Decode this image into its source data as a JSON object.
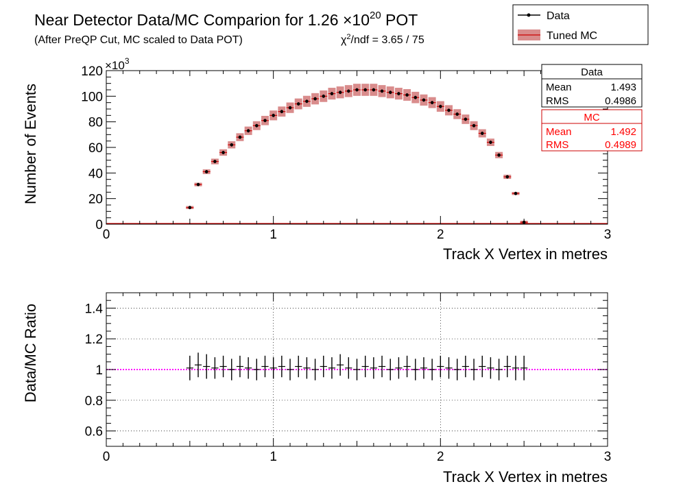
{
  "header": {
    "title_main": "Near Detector Data/MC Comparion for 1.26 ",
    "title_times": "×10",
    "title_exp": "20",
    "title_tail": " POT",
    "subtitle": "(After PreQP Cut, MC scaled to Data POT)",
    "chi2_chi": "χ",
    "chi2_sup": "2",
    "chi2_rest": "/ndf = 3.65 / 75"
  },
  "legend": {
    "data_label": "Data",
    "mc_label": "Tuned MC"
  },
  "stats": {
    "data": {
      "title": "Data",
      "mean_label": "Mean",
      "mean": "1.493",
      "rms_label": "RMS",
      "rms": "0.4986"
    },
    "mc": {
      "title": "MC",
      "mean_label": "Mean",
      "mean": "1.492",
      "rms_label": "RMS",
      "rms": "0.4989"
    }
  },
  "colors": {
    "data": "#000000",
    "mc_band": "#d98c8c",
    "mc_line": "#cc0000",
    "ratio_line": "#ff00ff"
  },
  "chart_data": [
    {
      "type": "line",
      "name": "distribution",
      "xlabel": "Track X Vertex in metres",
      "ylabel": "Number of Events",
      "y_exponent_label": "×10",
      "y_exponent": "3",
      "xlim": [
        0,
        3
      ],
      "ylim": [
        0,
        120
      ],
      "xticks": [
        0,
        1,
        2,
        3
      ],
      "yticks": [
        0,
        20,
        40,
        60,
        80,
        100,
        120
      ],
      "grid": false,
      "legend_position": "top-right",
      "bin_width": 0.05,
      "x": [
        0.5,
        0.55,
        0.6,
        0.65,
        0.7,
        0.75,
        0.8,
        0.85,
        0.9,
        0.95,
        1.0,
        1.05,
        1.1,
        1.15,
        1.2,
        1.25,
        1.3,
        1.35,
        1.4,
        1.45,
        1.5,
        1.55,
        1.6,
        1.65,
        1.7,
        1.75,
        1.8,
        1.85,
        1.9,
        1.95,
        2.0,
        2.05,
        2.1,
        2.15,
        2.2,
        2.25,
        2.3,
        2.35,
        2.4,
        2.45,
        2.5
      ],
      "series": [
        {
          "name": "Data",
          "values": [
            13,
            31,
            41,
            49,
            56,
            62,
            68,
            73,
            77,
            81,
            85,
            88,
            91,
            94,
            96,
            98,
            100,
            102,
            103,
            104,
            105,
            105,
            105,
            104,
            103,
            102,
            101,
            99,
            97,
            95,
            92,
            89,
            86,
            82,
            77,
            71,
            64,
            54,
            37,
            24,
            1.5
          ]
        },
        {
          "name": "Tuned MC",
          "values": [
            13,
            31,
            41,
            49,
            56,
            62,
            68,
            73,
            77,
            81,
            85,
            88,
            91,
            94,
            96,
            98,
            100,
            102,
            103,
            104,
            105,
            105,
            105,
            104,
            103,
            102,
            101,
            99,
            97,
            95,
            92,
            89,
            86,
            82,
            77,
            71,
            64,
            54,
            37,
            24,
            1.5
          ]
        }
      ]
    },
    {
      "type": "scatter",
      "name": "ratio",
      "xlabel": "Track X Vertex in metres",
      "ylabel": "Data/MC Ratio",
      "xlim": [
        0,
        3
      ],
      "ylim": [
        0.5,
        1.5
      ],
      "xticks": [
        0,
        1,
        2,
        3
      ],
      "yticks": [
        0.6,
        0.8,
        1,
        1.2,
        1.4
      ],
      "ytick_labels": [
        "0.6",
        "0.8",
        "1",
        "1.2",
        "1.4"
      ],
      "grid": true,
      "reference_value": 1,
      "x": [
        0.5,
        0.55,
        0.6,
        0.65,
        0.7,
        0.75,
        0.8,
        0.85,
        0.9,
        0.95,
        1.0,
        1.05,
        1.1,
        1.15,
        1.2,
        1.25,
        1.3,
        1.35,
        1.4,
        1.45,
        1.5,
        1.55,
        1.6,
        1.65,
        1.7,
        1.75,
        1.8,
        1.85,
        1.9,
        1.95,
        2.0,
        2.05,
        2.1,
        2.15,
        2.2,
        2.25,
        2.3,
        2.35,
        2.4,
        2.45,
        2.5
      ],
      "values": [
        1.01,
        1.03,
        1.02,
        1.01,
        1.02,
        1.0,
        1.02,
        1.01,
        1.0,
        1.02,
        1.01,
        1.02,
        1.0,
        1.02,
        1.01,
        1.0,
        1.02,
        1.01,
        1.03,
        1.01,
        1.0,
        1.02,
        1.01,
        1.02,
        1.0,
        1.01,
        1.02,
        1.0,
        1.01,
        1.0,
        1.02,
        1.01,
        1.0,
        1.02,
        1.0,
        1.02,
        1.01,
        1.0,
        1.02,
        1.01,
        1.01
      ],
      "errors": [
        0.08,
        0.08,
        0.08,
        0.07,
        0.07,
        0.07,
        0.07,
        0.07,
        0.07,
        0.07,
        0.07,
        0.07,
        0.07,
        0.07,
        0.07,
        0.07,
        0.07,
        0.07,
        0.07,
        0.07,
        0.07,
        0.07,
        0.07,
        0.07,
        0.07,
        0.07,
        0.07,
        0.07,
        0.07,
        0.07,
        0.07,
        0.07,
        0.07,
        0.07,
        0.07,
        0.07,
        0.07,
        0.07,
        0.07,
        0.08,
        0.08
      ]
    }
  ]
}
